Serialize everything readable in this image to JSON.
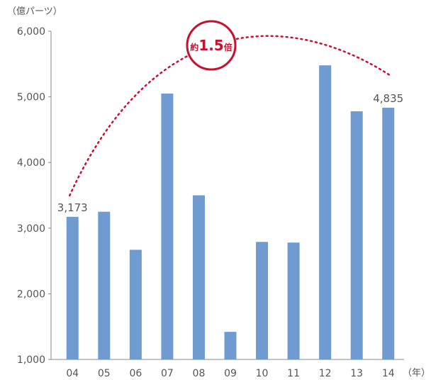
{
  "chart_data": {
    "type": "bar",
    "categories": [
      "04",
      "05",
      "06",
      "07",
      "08",
      "09",
      "10",
      "11",
      "12",
      "13",
      "14"
    ],
    "values": [
      3173,
      3250,
      2670,
      5050,
      3500,
      1420,
      2790,
      2780,
      5480,
      4780,
      4835
    ],
    "ylabel": "（億パーツ）",
    "xlabel": "（年）",
    "ylim": [
      1000,
      6000
    ],
    "yticks": [
      "1,000",
      "2,000",
      "3,000",
      "4,000",
      "5,000",
      "6,000"
    ],
    "data_labels": [
      {
        "category": "04",
        "text": "3,173"
      },
      {
        "category": "14",
        "text": "4,835"
      }
    ],
    "annotation": {
      "prefix": "約",
      "value": "1.5",
      "suffix": "倍"
    },
    "bar_color": "#6f9bd1",
    "annotation_color": "#c8102e",
    "grid": false
  }
}
